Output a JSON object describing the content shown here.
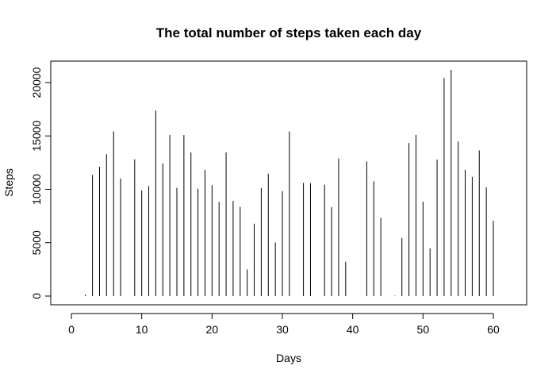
{
  "chart_data": {
    "type": "bar",
    "title": "The total number of steps taken each day",
    "xlabel": "Days",
    "ylabel": "Steps",
    "xlim": [
      0,
      61
    ],
    "ylim": [
      0,
      21194
    ],
    "x_ticks": [
      0,
      10,
      20,
      30,
      40,
      50,
      60
    ],
    "y_ticks": [
      0,
      5000,
      10000,
      15000,
      20000
    ],
    "grid": false,
    "style": "vertical lines (histogram-like)",
    "x": [
      1,
      2,
      3,
      4,
      5,
      6,
      7,
      8,
      9,
      10,
      11,
      12,
      13,
      14,
      15,
      16,
      17,
      18,
      19,
      20,
      21,
      22,
      23,
      24,
      25,
      26,
      27,
      28,
      29,
      30,
      31,
      32,
      33,
      34,
      35,
      36,
      37,
      38,
      39,
      40,
      41,
      42,
      43,
      44,
      45,
      46,
      47,
      48,
      49,
      50,
      51,
      52,
      53,
      54,
      55,
      56,
      57,
      58,
      59,
      60,
      61
    ],
    "values": [
      0,
      126,
      11352,
      12116,
      13294,
      15420,
      11015,
      0,
      12811,
      9900,
      10304,
      17382,
      12426,
      15098,
      10139,
      15084,
      13452,
      10056,
      11829,
      10395,
      8821,
      13460,
      8918,
      8355,
      2492,
      6778,
      10119,
      11458,
      5018,
      9819,
      15414,
      0,
      10600,
      10571,
      0,
      10439,
      8334,
      12883,
      3219,
      0,
      0,
      12608,
      10765,
      7336,
      0,
      41,
      5441,
      14339,
      15110,
      8841,
      4472,
      12787,
      20427,
      21194,
      14478,
      11834,
      11162,
      13646,
      10183,
      7047,
      0
    ]
  }
}
